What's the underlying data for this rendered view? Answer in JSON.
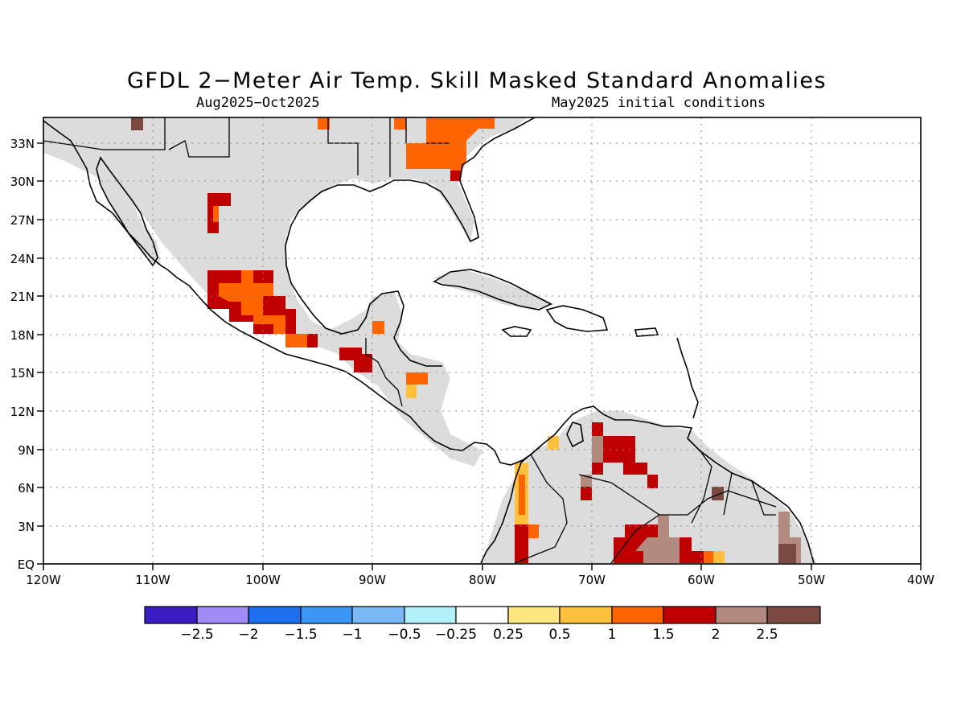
{
  "title": "GFDL 2−Meter Air Temp. Skill Masked Standard Anomalies",
  "valid_period": "Aug2025−Oct2025",
  "init_conditions": "May2025 initial conditions",
  "axes": {
    "lon_labels": [
      "120W",
      "110W",
      "100W",
      "90W",
      "80W",
      "70W",
      "60W",
      "50W",
      "40W"
    ],
    "lat_labels": [
      "EQ",
      "3N",
      "6N",
      "9N",
      "12N",
      "15N",
      "18N",
      "21N",
      "24N",
      "27N",
      "30N",
      "33N"
    ],
    "lon_range_deg": [
      -120,
      -40
    ],
    "lat_range_deg": [
      0,
      35
    ],
    "gridlines": "dotted"
  },
  "legend": {
    "labels": [
      "−2.5",
      "−2",
      "−1.5",
      "−1",
      "−0.5",
      "−0.25",
      "0.25",
      "0.5",
      "1",
      "1.5",
      "2",
      "2.5"
    ],
    "colors": [
      "#3b1ec2",
      "#9f8cf6",
      "#1e6ef0",
      "#3c96f5",
      "#78b9f5",
      "#b4f0fa",
      "#ffffff",
      "#ffe680",
      "#ffc03c",
      "#ff6400",
      "#c00000",
      "#b38a80",
      "#7a4a42"
    ]
  },
  "colors": {
    "masked_land": "#dcdcdc",
    "ocean": "#ffffff",
    "coastline": "#000000"
  },
  "regions": [
    {
      "region": "northern Mexico (Chihuahua)",
      "anomaly_class": "1.5 to 2"
    },
    {
      "region": "central Mexico",
      "anomaly_class": "1.5 to 2"
    },
    {
      "region": "Guatemala",
      "anomaly_class": "1.5 to 2"
    },
    {
      "region": "southeastern United States",
      "anomaly_class": "1 to 1.5"
    },
    {
      "region": "Venezuela",
      "anomaly_class": "1.5 to 2"
    },
    {
      "region": "Colombia Pacific coast",
      "anomaly_class": "0.5 to 1"
    },
    {
      "region": "northern Brazil",
      "anomaly_class": "2 to 2.5"
    },
    {
      "region": "French Guiana",
      "anomaly_class": "> 2.5"
    }
  ]
}
